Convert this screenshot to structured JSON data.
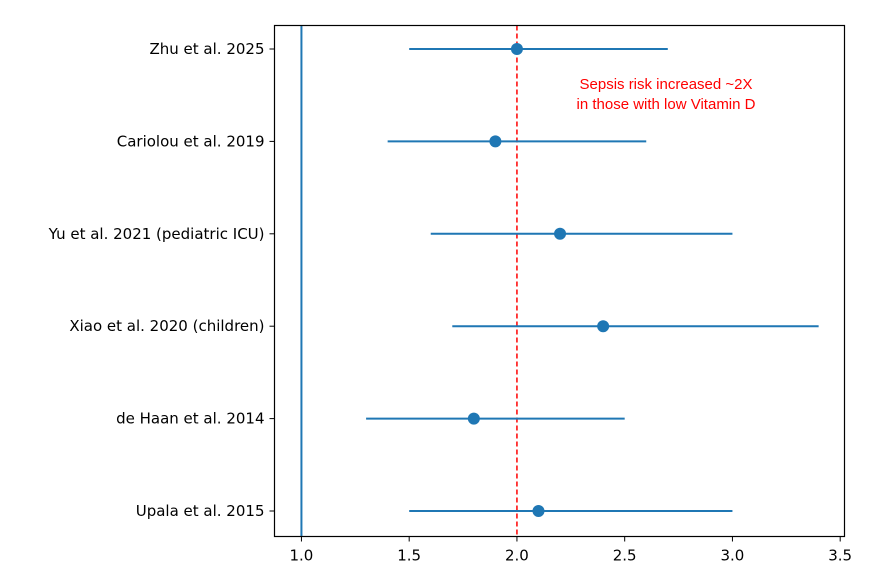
{
  "chart_data": {
    "type": "forest",
    "categories": [
      "Zhu et al. 2025",
      "Cariolou et al. 2019",
      "Yu et al. 2021 (pediatric ICU)",
      "Xiao et al. 2020 (children)",
      "de Haan et al. 2014",
      "Upala et al. 2015"
    ],
    "series": [
      {
        "estimates": [
          2.0,
          1.9,
          2.2,
          2.4,
          1.8,
          2.1
        ],
        "lower": [
          1.5,
          1.4,
          1.6,
          1.7,
          1.3,
          1.5
        ],
        "upper": [
          2.7,
          2.6,
          3.0,
          3.4,
          2.5,
          3.0
        ]
      }
    ],
    "xlim": [
      0.875,
      3.52
    ],
    "xticks": [
      "1.0",
      "1.5",
      "2.0",
      "2.5",
      "3.0",
      "3.5"
    ],
    "reference_lines": [
      {
        "x": 1.0,
        "style": "solid",
        "color": "#1f77b4"
      },
      {
        "x": 2.0,
        "style": "dashed",
        "color": "#ff0000"
      }
    ],
    "annotation": {
      "line1": "Sepsis  risk increased ~2X",
      "line2": "in those with low Vitamin D",
      "color": "#ff0000"
    },
    "color": "#1f77b4",
    "grid": false
  }
}
